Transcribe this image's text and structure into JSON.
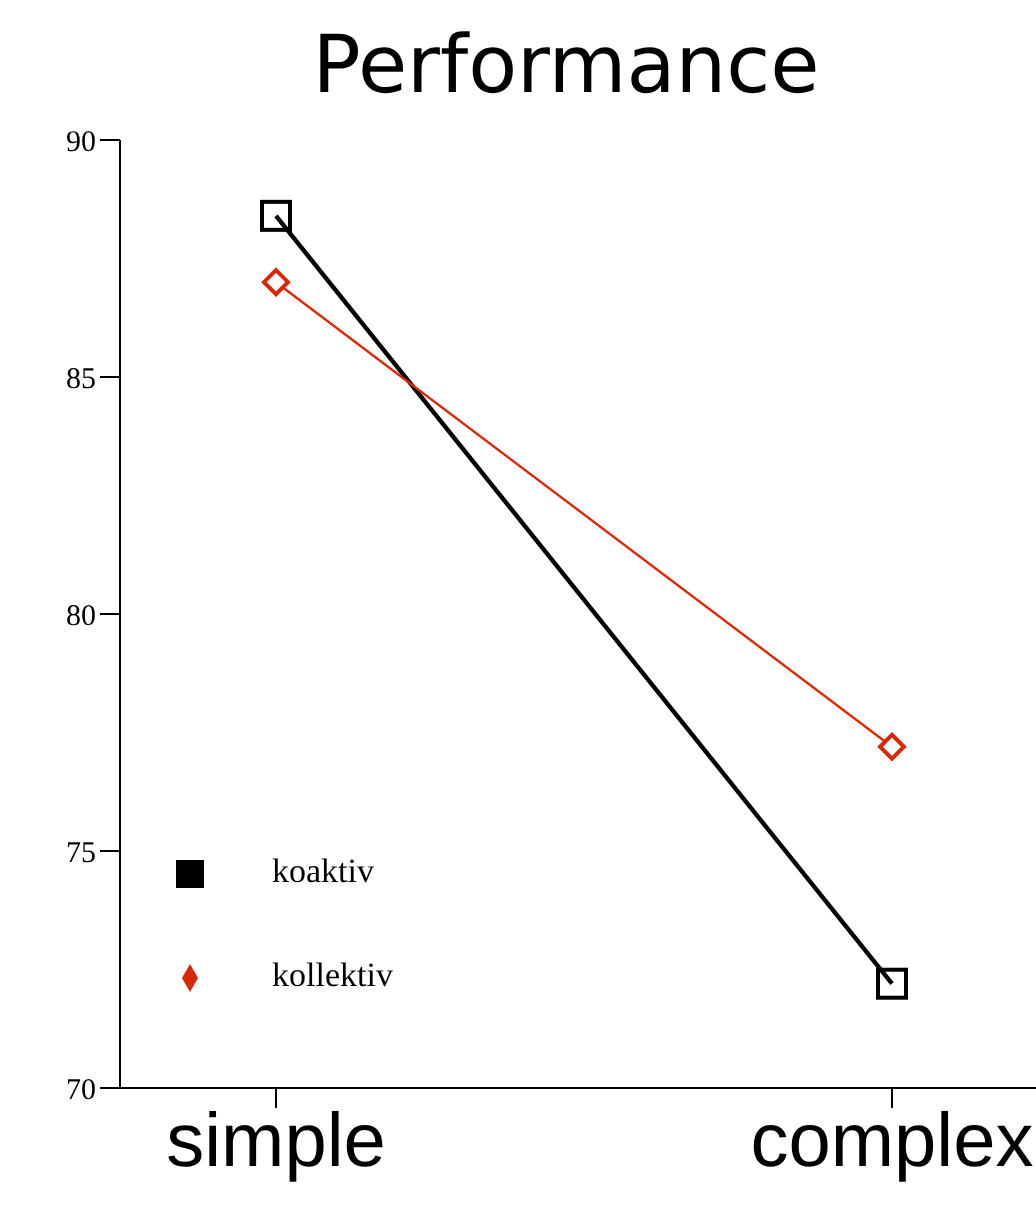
{
  "chart_data": {
    "type": "line",
    "title": "Performance",
    "categories": [
      "simple",
      "complex"
    ],
    "series": [
      {
        "name": "koaktiv",
        "color": "#000000",
        "values": [
          88.4,
          72.2
        ],
        "marker": "square"
      },
      {
        "name": "kollektiv",
        "color": "#d42a0a",
        "values": [
          87.0,
          77.2
        ],
        "marker": "diamond"
      }
    ],
    "ylim": [
      70,
      90
    ],
    "yticks": [
      70,
      75,
      80,
      85,
      90
    ],
    "grid": false,
    "legend": "bottom left"
  }
}
